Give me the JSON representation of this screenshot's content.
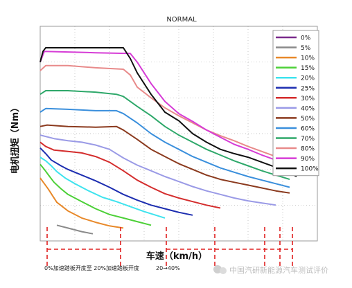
{
  "chart_data": {
    "type": "line",
    "title": "NORMAL",
    "xlabel": "车速（km/h）",
    "ylabel": "电机扭矩（Nm）",
    "x_tick_labels": [],
    "y_tick_labels": [],
    "xlim": [
      0,
      200
    ],
    "ylim": [
      -10,
      290
    ],
    "grid": true,
    "legend_position": "top-right",
    "annotations": {
      "region_1": "0%加速踏板开度至 20%加速踏板开度",
      "region_2": "20→40%",
      "watermark": "中国汽研新能源汽车测试评价"
    },
    "series": [
      {
        "name": "0%",
        "color": "#7a2a8c",
        "x": [],
        "y": []
      },
      {
        "name": "5%",
        "color": "#8a8a8a",
        "x": [
          12,
          20,
          30,
          38
        ],
        "y": [
          12,
          8,
          3,
          0
        ]
      },
      {
        "name": "10%",
        "color": "#e8892a",
        "x": [
          0,
          3,
          6,
          9,
          12,
          20,
          30,
          40,
          50,
          60
        ],
        "y": [
          78,
          70,
          62,
          53,
          44,
          32,
          22,
          16,
          11,
          8
        ]
      },
      {
        "name": "15%",
        "color": "#4cd037",
        "x": [
          0,
          3,
          6,
          10,
          15,
          20,
          30,
          40,
          50,
          60,
          70,
          80
        ],
        "y": [
          97,
          90,
          82,
          72,
          63,
          55,
          45,
          35,
          27,
          22,
          17,
          12
        ]
      },
      {
        "name": "20%",
        "color": "#3ee3ee",
        "x": [
          0,
          4,
          8,
          12,
          18,
          25,
          35,
          45,
          55,
          65,
          75,
          85,
          90
        ],
        "y": [
          107,
          102,
          95,
          87,
          78,
          70,
          60,
          51,
          45,
          38,
          31,
          25,
          22
        ]
      },
      {
        "name": "25%",
        "color": "#1c2db0",
        "x": [
          0,
          4,
          8,
          15,
          20,
          30,
          40,
          50,
          60,
          70,
          80,
          90,
          100,
          110
        ],
        "y": [
          120,
          112,
          103,
          95,
          90,
          82,
          74,
          65,
          55,
          47,
          40,
          35,
          30,
          26
        ]
      },
      {
        "name": "30%",
        "color": "#d42d2d",
        "x": [
          0,
          4,
          10,
          20,
          30,
          40,
          50,
          60,
          70,
          80,
          90,
          100,
          110,
          120,
          130
        ],
        "y": [
          128,
          122,
          117,
          115,
          113,
          108,
          100,
          88,
          75,
          65,
          56,
          50,
          45,
          40,
          36
        ]
      },
      {
        "name": "40%",
        "color": "#9a9ae6",
        "x": [
          0,
          10,
          20,
          30,
          40,
          50,
          60,
          70,
          80,
          90,
          100,
          110,
          120,
          130,
          140,
          150,
          160,
          170
        ],
        "y": [
          138,
          133,
          130,
          128,
          124,
          118,
          106,
          96,
          88,
          80,
          73,
          66,
          60,
          55,
          50,
          46,
          43,
          40
        ]
      },
      {
        "name": "50%",
        "color": "#8b3a1e",
        "x": [
          0,
          5,
          20,
          40,
          55,
          60,
          70,
          80,
          90,
          100,
          110,
          120,
          130,
          140,
          150,
          160,
          170,
          180
        ],
        "y": [
          150,
          152,
          150,
          149,
          150,
          145,
          132,
          118,
          108,
          98,
          90,
          82,
          76,
          72,
          68,
          64,
          60,
          57
        ]
      },
      {
        "name": "60%",
        "color": "#3a8fdc",
        "x": [
          0,
          4,
          20,
          40,
          55,
          60,
          70,
          80,
          90,
          100,
          110,
          120,
          130,
          140,
          150,
          160,
          170,
          180
        ],
        "y": [
          170,
          175,
          174,
          172,
          172,
          168,
          155,
          140,
          128,
          118,
          108,
          100,
          92,
          86,
          80,
          75,
          70,
          65
        ]
      },
      {
        "name": "70%",
        "color": "#2ea86a",
        "x": [
          0,
          4,
          20,
          40,
          55,
          60,
          70,
          80,
          90,
          100,
          110,
          120,
          130,
          140,
          150,
          160,
          170,
          180
        ],
        "y": [
          195,
          200,
          200,
          198,
          195,
          192,
          178,
          165,
          150,
          138,
          128,
          118,
          110,
          102,
          95,
          88,
          82,
          76
        ]
      },
      {
        "name": "80%",
        "color": "#e88a8a",
        "x": [
          0,
          4,
          20,
          40,
          60,
          65,
          70,
          80,
          90,
          100,
          110,
          120,
          130,
          140,
          150,
          160,
          170,
          180
        ],
        "y": [
          228,
          235,
          235,
          232,
          230,
          222,
          205,
          190,
          176,
          165,
          155,
          145,
          137,
          130,
          122,
          115,
          108,
          100
        ]
      },
      {
        "name": "90%",
        "color": "#d63cd6",
        "x": [
          0,
          3,
          40,
          65,
          70,
          80,
          90,
          100,
          110,
          120,
          130,
          140,
          150,
          160,
          170,
          180
        ],
        "y": [
          240,
          255,
          253,
          252,
          240,
          210,
          185,
          168,
          157,
          145,
          135,
          125,
          118,
          110,
          103,
          95
        ]
      },
      {
        "name": "100%",
        "color": "#111111",
        "x": [
          0,
          2,
          4,
          10,
          20,
          30,
          40,
          50,
          60,
          65,
          70,
          80,
          90,
          100,
          110,
          120,
          130,
          140,
          150,
          160,
          170,
          180,
          185
        ],
        "y": [
          240,
          255,
          260,
          260,
          260,
          260,
          260,
          260,
          260,
          245,
          225,
          195,
          170,
          158,
          140,
          128,
          118,
          112,
          107,
          100,
          93,
          85,
          80
        ]
      }
    ]
  }
}
